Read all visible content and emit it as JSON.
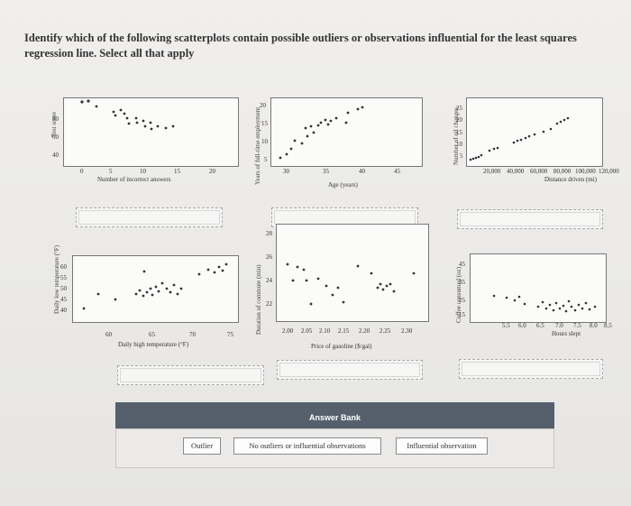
{
  "question": "Identify which of the following scatterplots contain possible outliers or observations influential for the least squares regression line. Select all that apply",
  "plots": [
    {
      "ylabel": "Test score",
      "xlabel": "Number of incorrect answers",
      "xticks": [
        "0",
        "5",
        "10",
        "15",
        "20"
      ],
      "yticks": [
        "80",
        "60",
        "40"
      ]
    },
    {
      "ylabel": "Years of full-time employment",
      "xlabel": "Age (years)",
      "xticks": [
        "30",
        "35",
        "40",
        "45"
      ],
      "yticks": [
        "20",
        "15",
        "10",
        "5"
      ]
    },
    {
      "ylabel": "Number of oil changes",
      "xlabel": "Distance driven (mi)",
      "xticks": [
        "20,000",
        "40,000",
        "60,000",
        "80,000",
        "100,000",
        "120,000"
      ],
      "yticks": [
        "25",
        "20",
        "15",
        "10",
        "5"
      ]
    },
    {
      "ylabel": "Daily low temperature (°F)",
      "xlabel": "Daily high temperature (°F)",
      "xticks": [
        "60",
        "65",
        "70",
        "75"
      ],
      "yticks": [
        "60",
        "55",
        "50",
        "45",
        "40"
      ]
    },
    {
      "ylabel": "Duration of commute (min)",
      "xlabel": "Price of gasoline ($/gal)",
      "xticks": [
        "2.00",
        "2.05",
        "2.10",
        "2.15",
        "2.20",
        "2.25",
        "2.30"
      ],
      "yticks": [
        "28",
        "26",
        "24",
        "22"
      ]
    },
    {
      "ylabel": "Coffee consumed (oz)",
      "xlabel": "Hours slept",
      "xticks": [
        "5.5",
        "6.0",
        "6.5",
        "7.0",
        "7.5",
        "8.0",
        "8.5"
      ],
      "yticks": [
        "45",
        "35",
        "25",
        "15"
      ]
    }
  ],
  "answer_bank": {
    "title": "Answer Bank",
    "chips": [
      "Outlier",
      "No outliers or influential observations",
      "Influential observation"
    ]
  }
}
